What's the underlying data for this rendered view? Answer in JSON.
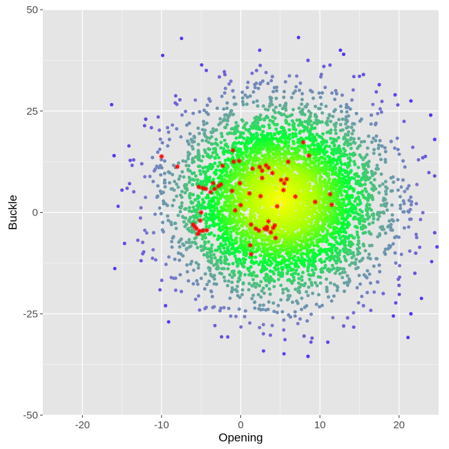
{
  "chart_data": {
    "type": "scatter",
    "title": "",
    "xlabel": "Opening",
    "ylabel": "Buckle",
    "xlim": [
      -25,
      25
    ],
    "ylim": [
      -50,
      50
    ],
    "x_ticks": [
      -20,
      -10,
      0,
      10,
      20
    ],
    "x_tick_labels": [
      "-20",
      "-10",
      "0",
      "10",
      "20"
    ],
    "y_ticks": [
      -50,
      -25,
      0,
      25,
      50
    ],
    "y_tick_labels": [
      "-50",
      "-25",
      "0",
      "25",
      "50"
    ],
    "grid": true,
    "legend": "none",
    "background_color": "#e5e5e5",
    "grid_color": "#ffffff",
    "marker_color": "#ff0000",
    "cloud_description": {
      "center": [
        5,
        3
      ],
      "color_gradient_center_to_edge": [
        "#ffff00",
        "#aaff00",
        "#00ff33",
        "#66aa99",
        "#7777cc",
        "#5533ee"
      ]
    },
    "series": [
      {
        "name": "",
        "marker": "point",
        "color": "gradient",
        "points": [
          [
            -16.0,
            14.0
          ],
          [
            -15.0,
            5.5
          ],
          [
            -12.0,
            23.0
          ],
          [
            -9.5,
            -23.0
          ],
          [
            -7.5,
            -19.5
          ],
          [
            -12.5,
            12.0
          ],
          [
            -11.0,
            -5.0
          ],
          [
            -9.0,
            18.0
          ],
          [
            -8.5,
            -6.0
          ],
          [
            -6.5,
            22.0
          ],
          [
            -4.0,
            28.0
          ],
          [
            2.0,
            35.0
          ],
          [
            -2.0,
            34.0
          ],
          [
            4.0,
            33.5
          ],
          [
            8.5,
            37.5
          ],
          [
            10.5,
            36.0
          ],
          [
            13.0,
            39.0
          ],
          [
            15.5,
            34.0
          ],
          [
            17.5,
            31.5
          ],
          [
            19.5,
            29.0
          ],
          [
            21.5,
            27.5
          ],
          [
            24.0,
            24.0
          ],
          [
            24.5,
            18.0
          ],
          [
            23.0,
            13.5
          ],
          [
            24.5,
            9.0
          ],
          [
            24.5,
            -5.0
          ],
          [
            24.8,
            -8.5
          ],
          [
            22.0,
            -15.0
          ],
          [
            21.5,
            -25.0
          ],
          [
            20.0,
            -18.0
          ],
          [
            18.0,
            -20.0
          ],
          [
            15.5,
            -23.0
          ],
          [
            13.5,
            -26.0
          ],
          [
            13.0,
            -28.0
          ],
          [
            11.0,
            -32.0
          ],
          [
            8.0,
            -30.5
          ],
          [
            8.5,
            -35.5
          ],
          [
            17.5,
            -13.0
          ],
          [
            19.5,
            -10.0
          ],
          [
            20.5,
            8.0
          ],
          [
            19.0,
            17.5
          ],
          [
            16.5,
            24.0
          ],
          [
            -7.0,
            6.0
          ],
          [
            -10.5,
            4.0
          ],
          [
            -4.0,
            -17.0
          ],
          [
            -1.0,
            30.0
          ],
          [
            12.0,
            30.0
          ],
          [
            0.0,
            -15.0
          ],
          [
            8.0,
            -18.0
          ],
          [
            14.0,
            21.0
          ],
          [
            2.0,
            23.5
          ],
          [
            10.0,
            15.0
          ],
          [
            -2.0,
            -10.0
          ],
          [
            7.0,
            3.0
          ],
          [
            5.0,
            12.0
          ],
          [
            12.0,
            -5.0
          ],
          [
            3.0,
            -12.0
          ],
          [
            -4.0,
            8.0
          ],
          [
            16.0,
            2.0
          ],
          [
            9.0,
            -12.0
          ]
        ]
      },
      {
        "name": "",
        "marker": "asterisk",
        "color": "#ff0000",
        "points": [
          [
            -10.0,
            13.8
          ],
          [
            -8.0,
            11.3
          ],
          [
            -1.0,
            15.3
          ],
          [
            -0.9,
            12.5
          ],
          [
            -0.2,
            12.7
          ],
          [
            -2.3,
            11.5
          ],
          [
            1.5,
            10.8
          ],
          [
            2.4,
            11.2
          ],
          [
            3.2,
            11.6
          ],
          [
            3.5,
            11.0
          ],
          [
            2.7,
            10.3
          ],
          [
            4.0,
            9.7
          ],
          [
            2.7,
            8.5
          ],
          [
            7.9,
            17.3
          ],
          [
            8.6,
            14.0
          ],
          [
            6.0,
            12.5
          ],
          [
            5.1,
            8.0
          ],
          [
            5.5,
            7.2
          ],
          [
            5.8,
            8.2
          ],
          [
            5.4,
            5.5
          ],
          [
            6.9,
            3.9
          ],
          [
            4.6,
            1.5
          ],
          [
            2.5,
            4.0
          ],
          [
            1.1,
            4.7
          ],
          [
            -0.1,
            7.2
          ],
          [
            -1.1,
            5.3
          ],
          [
            -0.7,
            0.5
          ],
          [
            0.0,
            1.8
          ],
          [
            -2.8,
            6.5
          ],
          [
            -2.5,
            6.9
          ],
          [
            -3.5,
            7.2
          ],
          [
            -3.3,
            5.8
          ],
          [
            -3.8,
            5.0
          ],
          [
            -4.4,
            5.8
          ],
          [
            -4.8,
            6.0
          ],
          [
            -5.3,
            6.3
          ],
          [
            -5.0,
            0.0
          ],
          [
            -5.1,
            -2.0
          ],
          [
            -5.8,
            -3.5
          ],
          [
            -6.0,
            -3.0
          ],
          [
            -5.6,
            -4.0
          ],
          [
            -5.2,
            -4.6
          ],
          [
            -4.8,
            -4.5
          ],
          [
            -4.3,
            -4.4
          ],
          [
            -5.4,
            -5.3
          ],
          [
            1.3,
            -3.0
          ],
          [
            1.9,
            -4.0
          ],
          [
            2.3,
            -4.5
          ],
          [
            3.0,
            -4.0
          ],
          [
            3.3,
            -3.6
          ],
          [
            3.5,
            -2.2
          ],
          [
            3.3,
            -4.2
          ],
          [
            4.1,
            -3.8
          ],
          [
            4.3,
            -3.2
          ],
          [
            3.8,
            -4.9
          ],
          [
            4.4,
            -6.3
          ],
          [
            1.2,
            -8.1
          ],
          [
            1.3,
            -10.3
          ],
          [
            9.4,
            2.6
          ],
          [
            11.3,
            4.5
          ],
          [
            11.5,
            1.9
          ]
        ]
      }
    ]
  }
}
